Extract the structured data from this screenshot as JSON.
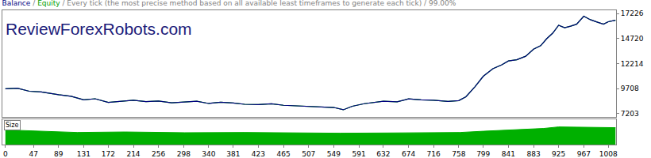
{
  "chart_data": [
    {
      "type": "line",
      "title": "Balance / Equity / Every tick (the most precise method based on all available least timeframes to generate each tick) / 99.00%",
      "annotations": [
        "ReviewForexRobots.com"
      ],
      "x": [
        0,
        20,
        40,
        60,
        89,
        110,
        131,
        150,
        172,
        195,
        214,
        235,
        256,
        278,
        298,
        320,
        340,
        360,
        381,
        400,
        423,
        445,
        465,
        485,
        507,
        530,
        549,
        565,
        580,
        600,
        620,
        632,
        655,
        674,
        695,
        716,
        740,
        758,
        770,
        785,
        799,
        815,
        830,
        841,
        855,
        870,
        883,
        895,
        905,
        915,
        925,
        935,
        945,
        955,
        967,
        978,
        990,
        1000,
        1008,
        1020
      ],
      "series": [
        {
          "name": "Equity",
          "color": "#00a000",
          "values": [
            9700,
            9760,
            9450,
            9380,
            9100,
            8950,
            8600,
            8700,
            8330,
            8450,
            8550,
            8420,
            8470,
            8300,
            8380,
            8450,
            8230,
            8350,
            8280,
            8150,
            8120,
            8200,
            8050,
            8000,
            7980,
            7900,
            7830,
            7600,
            7950,
            8210,
            8350,
            8450,
            8400,
            8690,
            8600,
            8550,
            8430,
            8520,
            8900,
            9900,
            10950,
            11700,
            12100,
            12480,
            12600,
            12950,
            13650,
            14000,
            14700,
            15250,
            16050,
            15800,
            15950,
            16150,
            16950,
            16600,
            16350,
            16150,
            16400,
            16550
          ]
        },
        {
          "name": "Balance",
          "color": "#000080",
          "values": [
            9700,
            9760,
            9450,
            9380,
            9100,
            8950,
            8600,
            8700,
            8330,
            8450,
            8550,
            8420,
            8470,
            8300,
            8380,
            8450,
            8230,
            8350,
            8280,
            8150,
            8120,
            8200,
            8050,
            8000,
            7980,
            7900,
            7830,
            7600,
            7950,
            8210,
            8350,
            8450,
            8400,
            8690,
            8600,
            8550,
            8430,
            8520,
            8900,
            9900,
            10950,
            11700,
            12100,
            12480,
            12600,
            12950,
            13650,
            14000,
            14700,
            15250,
            16050,
            15800,
            15950,
            16150,
            16950,
            16600,
            16350,
            16150,
            16400,
            16550
          ]
        }
      ],
      "xlim": [
        -5,
        1021
      ],
      "ylim": [
        6887,
        17542
      ],
      "yticks": [
        7203,
        9708,
        12214,
        14720,
        17226
      ],
      "tick_labels": "y",
      "grid": false
    },
    {
      "type": "area",
      "title": "Size",
      "x": [
        0,
        60,
        120,
        200,
        300,
        400,
        500,
        560,
        640,
        720,
        760,
        800,
        850,
        900,
        925,
        960,
        1000,
        1020
      ],
      "values": [
        58,
        52,
        48,
        50,
        47,
        48,
        46,
        45,
        46,
        47,
        48,
        53,
        58,
        64,
        70,
        69,
        68,
        67
      ],
      "color": "#00b000",
      "xlim": [
        -5,
        1021
      ],
      "xticks": [
        0,
        47,
        89,
        131,
        172,
        214,
        256,
        298,
        340,
        381,
        423,
        465,
        507,
        549,
        591,
        632,
        674,
        716,
        758,
        799,
        841,
        883,
        925,
        967,
        1008
      ],
      "ylim": [
        0,
        100
      ],
      "tick_labels": "x",
      "grid": false
    }
  ]
}
